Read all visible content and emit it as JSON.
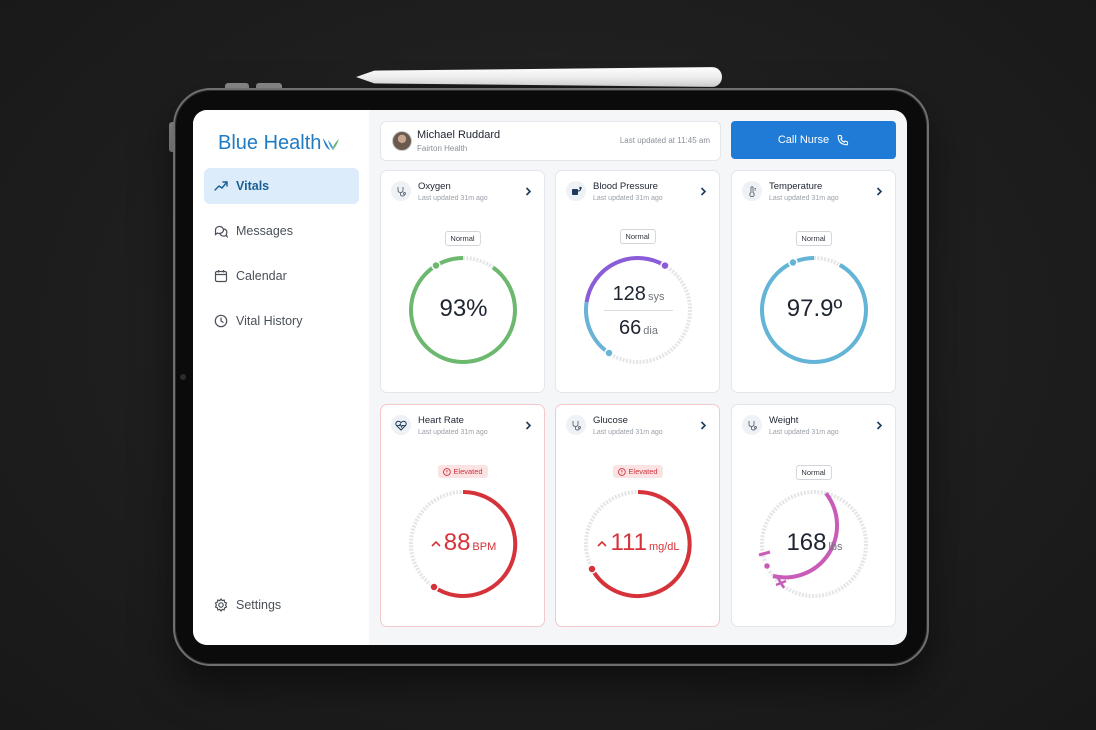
{
  "app": {
    "brand": "Blue Health",
    "colors": {
      "brand": "#1f7bc4",
      "accent": "#1f7bd6",
      "normal_green": "#6cb86f",
      "bp_purple": "#8a5cd8",
      "bp_blue": "#6ab2d6",
      "temp_blue": "#63b4d6",
      "elevated_red": "#d6323a",
      "weight_pink": "#c85cb8"
    }
  },
  "sidebar": {
    "items": [
      {
        "label": "Vitals",
        "icon": "trend-up-icon",
        "active": true
      },
      {
        "label": "Messages",
        "icon": "chat-bubbles-icon"
      },
      {
        "label": "Calendar",
        "icon": "calendar-icon"
      },
      {
        "label": "Vital History",
        "icon": "clock-icon"
      }
    ],
    "settings_label": "Settings"
  },
  "header": {
    "patient_name": "Michael Ruddard",
    "organization": "Fairton Health",
    "last_updated": "Last updated at 11:45 am",
    "call_button": "Call Nurse"
  },
  "vitals": [
    {
      "title": "Oxygen",
      "subtitle": "Last updated 31m ago",
      "status": "Normal",
      "value": "93%",
      "gauge_fraction": 0.93,
      "color": "#6cb86f"
    },
    {
      "title": "Blood Pressure",
      "subtitle": "Last updated 31m ago",
      "status": "Normal",
      "systolic": "128",
      "systolic_unit": "sys",
      "diastolic": "66",
      "diastolic_unit": "dia"
    },
    {
      "title": "Temperature",
      "subtitle": "Last updated 31m ago",
      "status": "Normal",
      "value": "97.9º",
      "color": "#63b4d6"
    },
    {
      "title": "Heart Rate",
      "subtitle": "Last updated 31m ago",
      "status": "Elevated",
      "value": "88",
      "unit": "BPM",
      "color": "#d6323a"
    },
    {
      "title": "Glucose",
      "subtitle": "Last updated 31m ago",
      "status": "Elevated",
      "value": "111",
      "unit": "mg/dL",
      "color": "#d6323a"
    },
    {
      "title": "Weight",
      "subtitle": "Last updated 31m ago",
      "status": "Normal",
      "value": "168",
      "unit": "lbs",
      "color": "#c85cb8"
    }
  ]
}
